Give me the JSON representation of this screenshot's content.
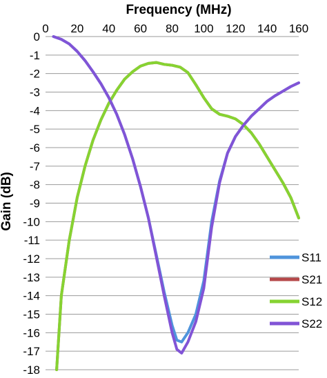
{
  "chart_data": {
    "type": "line",
    "xlabel": "Frequency (MHz)",
    "ylabel": "Gain (dB)",
    "xlim": [
      0,
      160
    ],
    "ylim": [
      -18,
      0
    ],
    "x_axis_position": "top",
    "x_ticks": [
      0,
      20,
      40,
      60,
      80,
      100,
      120,
      140,
      160
    ],
    "y_ticks": [
      0,
      -1,
      -2,
      -3,
      -4,
      -5,
      -6,
      -7,
      -8,
      -9,
      -10,
      -11,
      -12,
      -13,
      -14,
      -15,
      -16,
      -17,
      -18
    ],
    "grid": "horizontal",
    "legend_position": "right",
    "series": [
      {
        "name": "S11",
        "color": "#4f94dc",
        "x": [
          5,
          10,
          15,
          20,
          25,
          30,
          35,
          40,
          45,
          50,
          55,
          60,
          65,
          70,
          75,
          80,
          83,
          86,
          90,
          95,
          100,
          105,
          110,
          115,
          120,
          125,
          130,
          135,
          140,
          145,
          150,
          155,
          160
        ],
        "y": [
          0,
          -0.15,
          -0.4,
          -0.8,
          -1.3,
          -1.9,
          -2.55,
          -3.3,
          -4.2,
          -5.3,
          -6.6,
          -8.1,
          -9.8,
          -11.8,
          -13.8,
          -15.6,
          -16.4,
          -16.5,
          -16.0,
          -15.0,
          -13.2,
          -10.0,
          -7.8,
          -6.3,
          -5.4,
          -4.8,
          -4.3,
          -3.9,
          -3.5,
          -3.2,
          -2.95,
          -2.7,
          -2.5
        ]
      },
      {
        "name": "S21",
        "color": "#b5484a",
        "x": [
          7,
          10,
          15,
          20,
          25,
          30,
          35,
          40,
          45,
          50,
          55,
          60,
          65,
          70,
          75,
          80,
          85,
          90,
          95,
          100,
          105,
          110,
          115,
          120,
          125,
          130,
          135,
          140,
          145,
          150,
          155,
          160
        ],
        "y": [
          -18,
          -14,
          -11,
          -8.7,
          -7.0,
          -5.6,
          -4.5,
          -3.6,
          -2.9,
          -2.3,
          -1.9,
          -1.6,
          -1.45,
          -1.4,
          -1.5,
          -1.55,
          -1.65,
          -1.95,
          -2.6,
          -3.3,
          -3.9,
          -4.2,
          -4.3,
          -4.45,
          -4.75,
          -5.2,
          -5.8,
          -6.5,
          -7.2,
          -7.9,
          -8.7,
          -9.8
        ]
      },
      {
        "name": "S12",
        "color": "#86d332",
        "x": [
          7,
          10,
          15,
          20,
          25,
          30,
          35,
          40,
          45,
          50,
          55,
          60,
          65,
          70,
          75,
          80,
          85,
          90,
          95,
          100,
          105,
          110,
          115,
          120,
          125,
          130,
          135,
          140,
          145,
          150,
          155,
          160
        ],
        "y": [
          -18,
          -14,
          -11,
          -8.7,
          -7.0,
          -5.6,
          -4.5,
          -3.6,
          -2.9,
          -2.3,
          -1.9,
          -1.6,
          -1.45,
          -1.4,
          -1.5,
          -1.55,
          -1.65,
          -1.95,
          -2.6,
          -3.3,
          -3.9,
          -4.2,
          -4.3,
          -4.45,
          -4.75,
          -5.2,
          -5.8,
          -6.5,
          -7.2,
          -7.9,
          -8.7,
          -9.8
        ]
      },
      {
        "name": "S22",
        "color": "#8154d6",
        "x": [
          5,
          10,
          15,
          20,
          25,
          30,
          35,
          40,
          45,
          50,
          55,
          60,
          65,
          70,
          75,
          80,
          83,
          86,
          90,
          95,
          100,
          105,
          110,
          115,
          120,
          125,
          130,
          135,
          140,
          145,
          150,
          155,
          160
        ],
        "y": [
          0,
          -0.15,
          -0.4,
          -0.8,
          -1.3,
          -1.9,
          -2.55,
          -3.3,
          -4.2,
          -5.3,
          -6.6,
          -8.1,
          -9.8,
          -11.9,
          -14.0,
          -16.0,
          -16.9,
          -17.1,
          -16.5,
          -15.4,
          -13.6,
          -10.3,
          -7.9,
          -6.3,
          -5.4,
          -4.8,
          -4.3,
          -3.9,
          -3.5,
          -3.2,
          -2.95,
          -2.7,
          -2.5
        ]
      }
    ]
  }
}
